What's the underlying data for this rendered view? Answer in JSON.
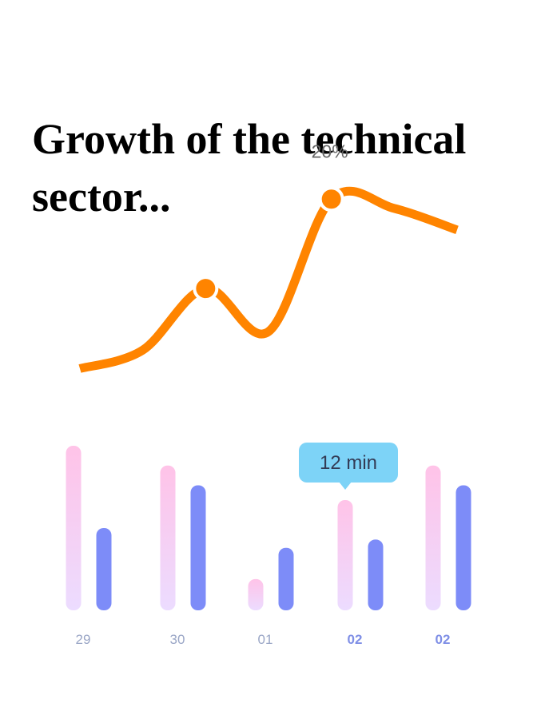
{
  "title": "Growth of the technical sector...",
  "colors": {
    "line": "#ff8400",
    "pink_top": "#ffc3e8",
    "pink_bottom": "#ecdcff",
    "blue": "#7d8cf8",
    "tooltip": "#7dd3f7",
    "tick_default": "#9aa6c6",
    "tick_highlight": "#7f8fe6"
  },
  "chart_data": [
    {
      "type": "line",
      "title": "",
      "annotations": [
        {
          "label": "20%",
          "at_point": 1
        }
      ],
      "x": [
        0,
        1,
        2,
        3,
        4,
        5,
        6
      ],
      "values": [
        10,
        16,
        36,
        22,
        65,
        62,
        55
      ],
      "ylim": [
        0,
        70
      ],
      "markers_at": [
        2,
        4
      ],
      "color": "#ff8400"
    },
    {
      "type": "bar",
      "categories": [
        "29",
        "30",
        "01",
        "02",
        "02"
      ],
      "highlighted_categories": [
        3,
        4
      ],
      "series": [
        {
          "values": [
            100,
            88,
            19,
            67,
            88
          ],
          "color": "pink"
        },
        {
          "values": [
            50,
            76,
            38,
            43,
            76
          ],
          "color": "blue"
        }
      ],
      "ylim": [
        0,
        100
      ],
      "tooltip": {
        "label": "12 min",
        "category_index": 3,
        "series_index": 0
      }
    }
  ]
}
